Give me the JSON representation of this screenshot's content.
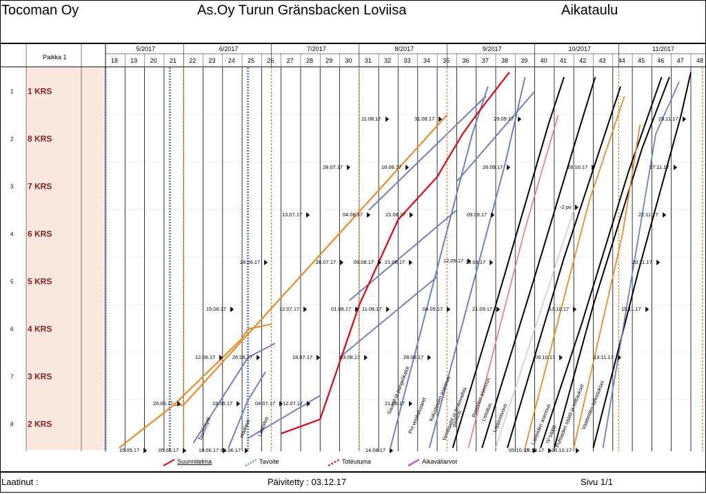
{
  "header": {
    "company": "Tocoman Oy",
    "project": "As.Oy Turun Gränsbacken Loviisa",
    "view": "Aikataulu"
  },
  "footer": {
    "author_label": "Laatinut :",
    "updated": "Päivitetty : 03.12.17",
    "page": "Sivu 1/1"
  },
  "chart_data": {
    "type": "line",
    "location_header": "Paikka 1",
    "months": [
      "5/2017",
      "6/2017",
      "7/2017",
      "8/2017",
      "9/2017",
      "10/2017",
      "11/2017"
    ],
    "weeks": [
      18,
      19,
      20,
      21,
      22,
      23,
      24,
      25,
      26,
      27,
      28,
      29,
      30,
      31,
      32,
      33,
      34,
      35,
      36,
      37,
      38,
      39,
      40,
      41,
      42,
      43,
      44,
      45,
      46,
      47,
      48
    ],
    "rows": [
      {
        "num": "1",
        "name": "1 KRS"
      },
      {
        "num": "2",
        "name": "8 KRS"
      },
      {
        "num": "3",
        "name": "7 KRS"
      },
      {
        "num": "4",
        "name": "6 KRS"
      },
      {
        "num": "5",
        "name": "5 KRS"
      },
      {
        "num": "6",
        "name": "4 KRS"
      },
      {
        "num": "7",
        "name": "3 KRS"
      },
      {
        "num": "8",
        "name": "2 KRS"
      }
    ],
    "legend": [
      {
        "label": "Suunnitelma",
        "color": "#e8000b"
      },
      {
        "label": "Tavoite",
        "color": "#2a8c8c"
      },
      {
        "label": "Toteutuma",
        "color": "#e8000b"
      },
      {
        "label": "Aikaväliarvot",
        "color": "#cc55cc"
      }
    ],
    "task_labels": [
      "Tasoitetyöt",
      "maalaus",
      "Laatoitus",
      "Saunat ja pangelikatot",
      "PH vesikalusteet",
      "Kalusteiden asennus",
      "Ventilaattit ja ilmanvaihto",
      "parketti",
      "puuovien asennus",
      "Listoitus",
      "Loppusiivous",
      "Laitteiden asennus",
      "IV-säätö",
      "Puhtaiden säätö ja mittaukset",
      "Vaatteiden tarkistukset"
    ],
    "date_labels": [
      "15.05.17",
      "05.06.17",
      "19.06.17",
      "06.06.17",
      "26.05.17",
      "19.06.17",
      "04.07.17",
      "12.07.17",
      "12.06.17",
      "26.06.17",
      "18.07.17",
      "03.08.17",
      "15.06.17",
      "12.07.17",
      "01.08.17",
      "11.08.17",
      "28.06.17",
      "26.07.17",
      "09.08.17",
      "21.08.17",
      "13.07.17",
      "04.08.17",
      "21.08.17",
      "28.07.17",
      "18.08.17",
      "11.08.17",
      "31.08.17",
      "28.08.17",
      "04.09.17",
      "21.08.17",
      "13.09.17",
      "29.09.17",
      "26.09.17",
      "09.09.17",
      "12.09.17",
      "21.09.17",
      "14.08.17",
      "05.10.17",
      "18.10.17",
      "20.10.17",
      "13.10.17",
      "09.10.17",
      "26.10.17",
      "29.11.17",
      "27.11.17",
      "22.11.17",
      "20.11.17",
      "15.11.17",
      "13.11.17",
      "-2 pv"
    ],
    "series": [
      {
        "name": "Suunnitelma",
        "color": "#e8000b",
        "points": [
          [
            31,
            1.0
          ],
          [
            32.5,
            2.5
          ],
          [
            34,
            4
          ],
          [
            35.5,
            5
          ],
          [
            37,
            6.5
          ],
          [
            38,
            7.5
          ],
          [
            39,
            8.0
          ]
        ]
      }
    ]
  }
}
